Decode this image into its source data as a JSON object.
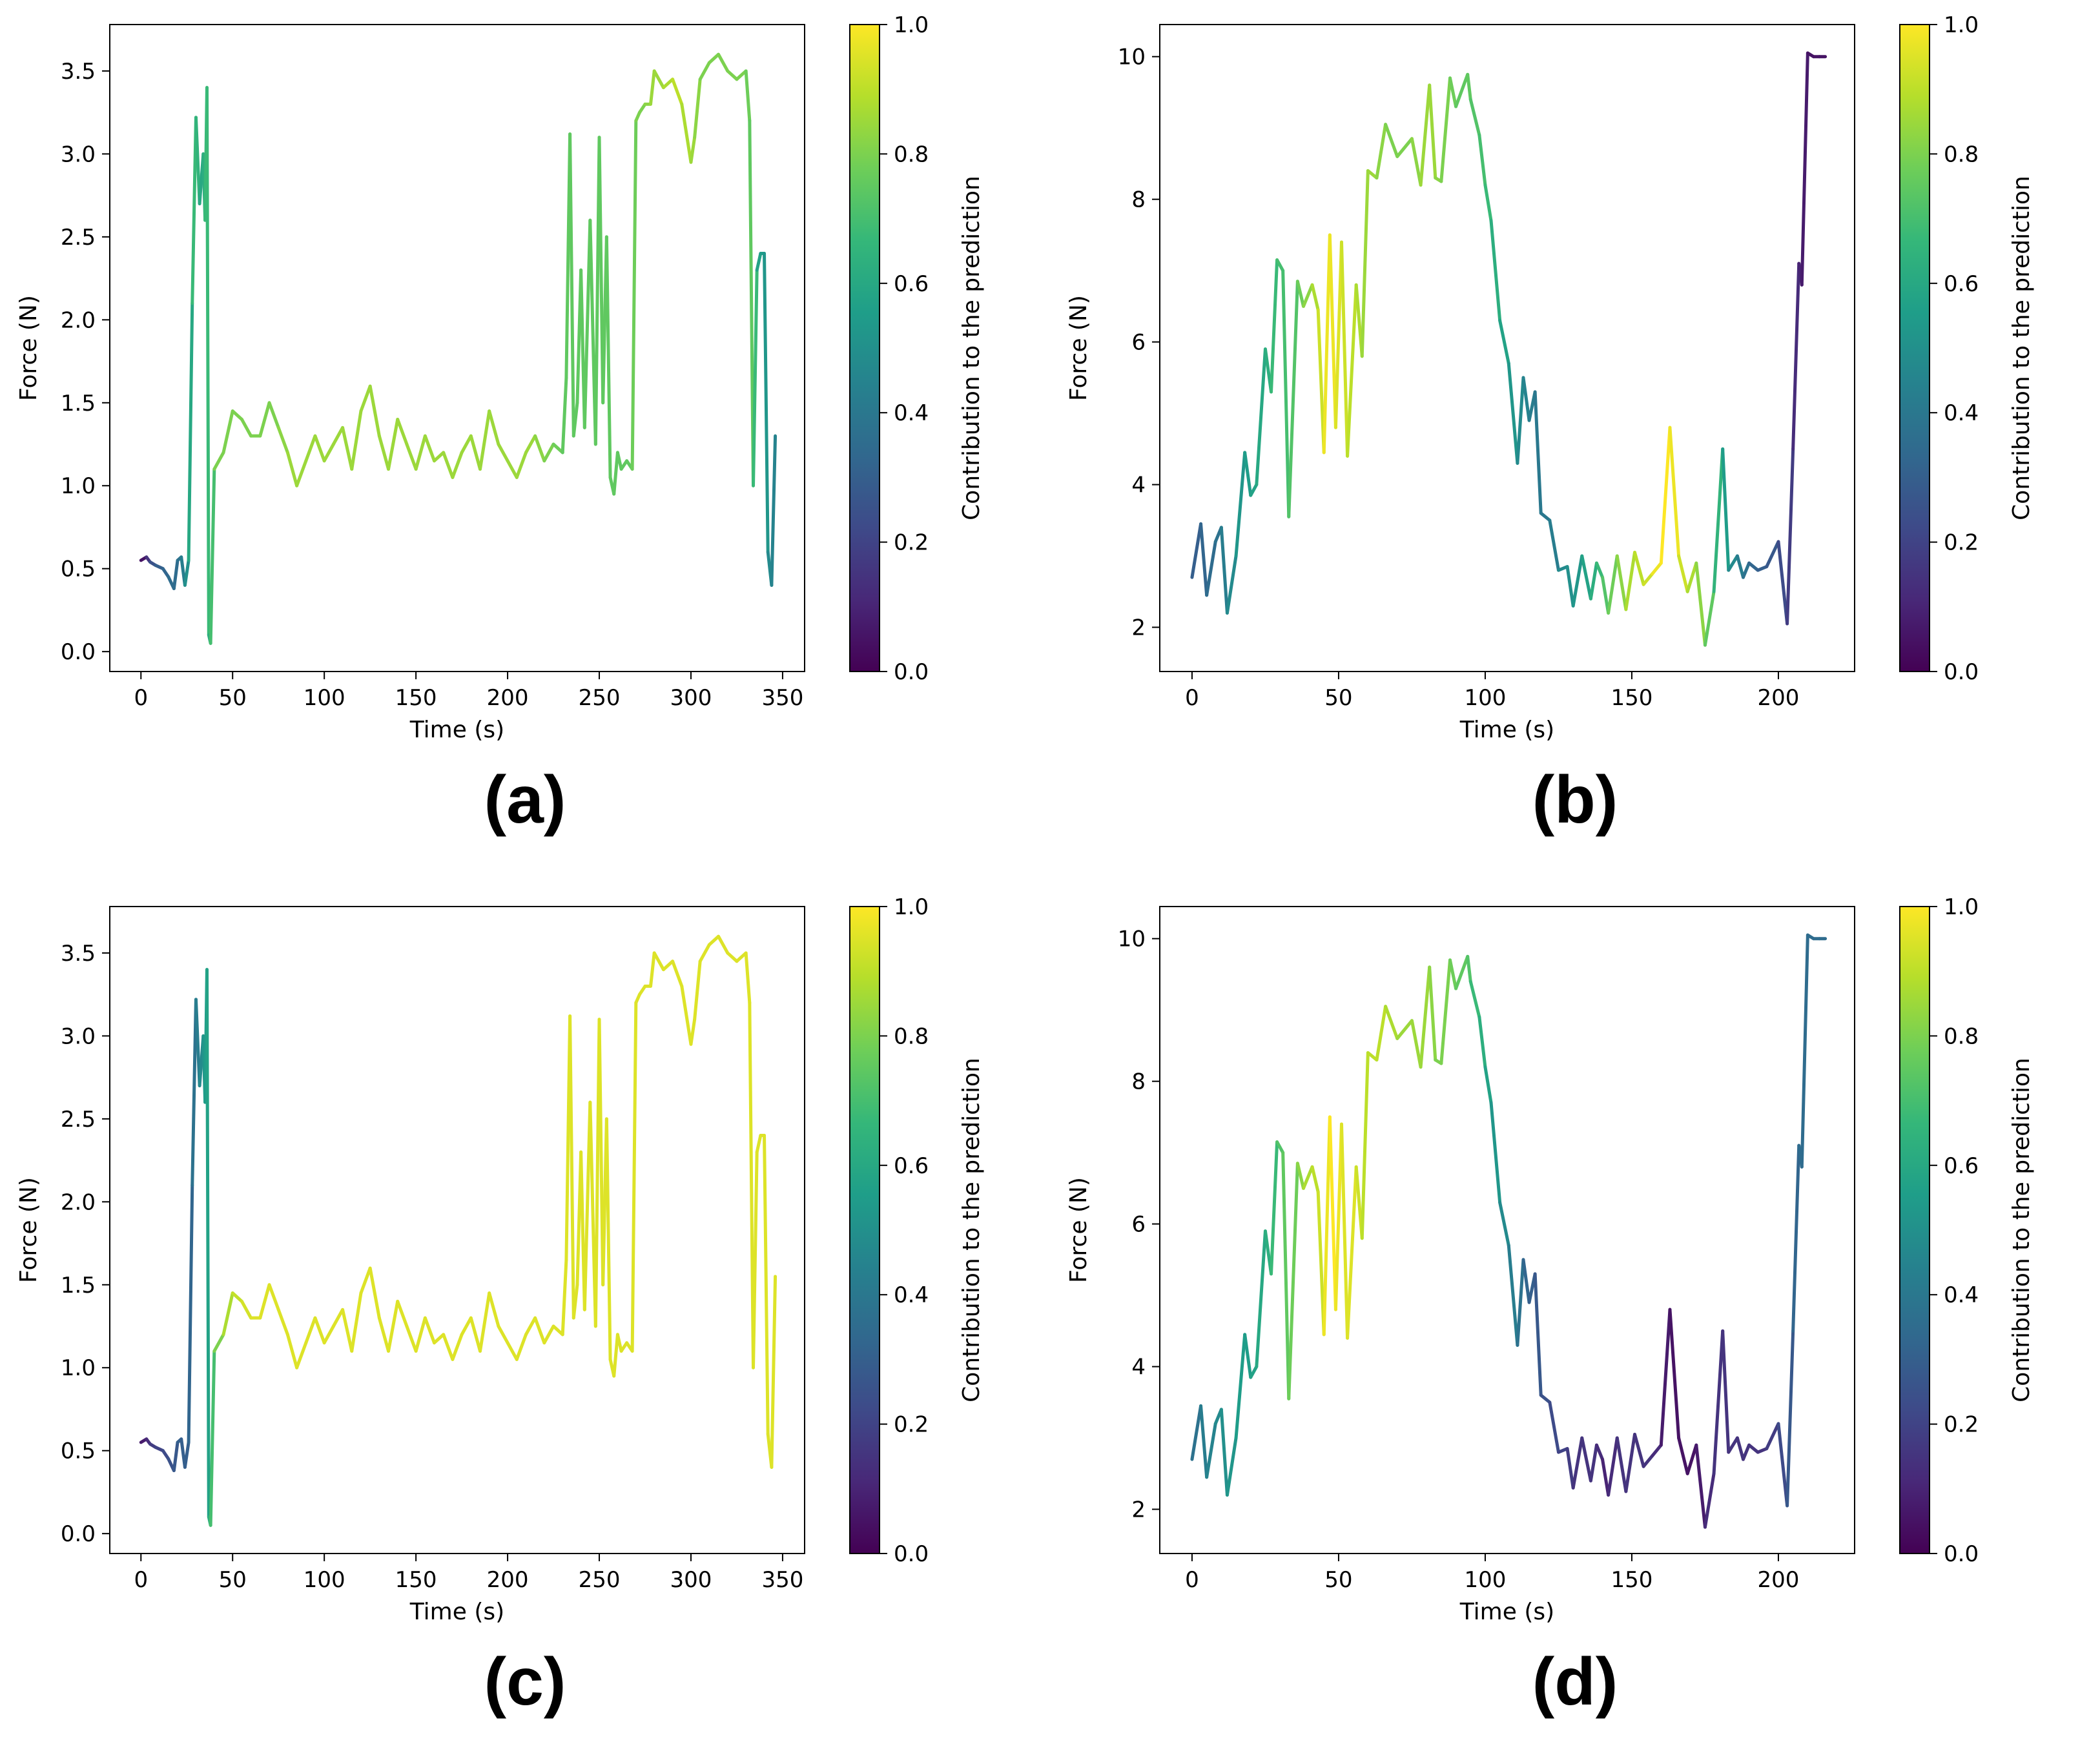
{
  "colorbar": {
    "label": "Contribution to the prediction",
    "ticks": [
      "0.0",
      "0.2",
      "0.4",
      "0.6",
      "0.8",
      "1.0"
    ],
    "range": [
      0,
      1
    ],
    "colormap": "viridis"
  },
  "chart_data": [
    {
      "id": "a",
      "panel_label": "(a)",
      "type": "line",
      "xlabel": "Time (s)",
      "ylabel": "Force (N)",
      "xlim": [
        -17,
        362
      ],
      "ylim": [
        -0.12,
        3.78
      ],
      "xticks": [
        "0",
        "50",
        "100",
        "150",
        "200",
        "250",
        "300",
        "350"
      ],
      "yticks": [
        "0.0",
        "0.5",
        "1.0",
        "1.5",
        "2.0",
        "2.5",
        "3.0",
        "3.5"
      ],
      "x": [
        0,
        3,
        5,
        8,
        12,
        15,
        18,
        20,
        22,
        24,
        26,
        28,
        30,
        32,
        34,
        35,
        36,
        37,
        38,
        40,
        45,
        50,
        55,
        60,
        65,
        70,
        75,
        80,
        85,
        90,
        95,
        100,
        105,
        110,
        115,
        120,
        125,
        130,
        135,
        140,
        145,
        150,
        155,
        160,
        165,
        170,
        175,
        180,
        185,
        190,
        195,
        200,
        205,
        210,
        215,
        220,
        225,
        230,
        232,
        234,
        236,
        238,
        240,
        242,
        245,
        248,
        250,
        252,
        254,
        256,
        258,
        260,
        262,
        265,
        268,
        270,
        272,
        275,
        278,
        280,
        285,
        290,
        295,
        300,
        302,
        305,
        310,
        315,
        320,
        325,
        330,
        332,
        334,
        336,
        338,
        340,
        342,
        344,
        346
      ],
      "y": [
        0.55,
        0.57,
        0.54,
        0.52,
        0.5,
        0.45,
        0.38,
        0.55,
        0.57,
        0.4,
        0.55,
        2.1,
        3.22,
        2.7,
        3.0,
        2.6,
        3.4,
        0.1,
        0.05,
        1.1,
        1.2,
        1.45,
        1.4,
        1.3,
        1.3,
        1.5,
        1.35,
        1.2,
        1.0,
        1.15,
        1.3,
        1.15,
        1.25,
        1.35,
        1.1,
        1.45,
        1.6,
        1.3,
        1.1,
        1.4,
        1.25,
        1.1,
        1.3,
        1.15,
        1.2,
        1.05,
        1.2,
        1.3,
        1.1,
        1.45,
        1.25,
        1.15,
        1.05,
        1.2,
        1.3,
        1.15,
        1.25,
        1.2,
        1.65,
        3.12,
        1.3,
        1.5,
        2.3,
        1.35,
        2.6,
        1.25,
        3.1,
        1.5,
        2.5,
        1.05,
        0.95,
        1.2,
        1.1,
        1.15,
        1.1,
        3.2,
        3.25,
        3.3,
        3.3,
        3.5,
        3.4,
        3.45,
        3.3,
        2.95,
        3.1,
        3.45,
        3.55,
        3.6,
        3.5,
        3.45,
        3.5,
        3.2,
        1.0,
        2.3,
        2.4,
        2.4,
        0.6,
        0.4,
        1.3
      ],
      "contribution": [
        0.0,
        0.1,
        0.2,
        0.3,
        0.3,
        0.35,
        0.35,
        0.35,
        0.4,
        0.45,
        0.55,
        0.65,
        0.7,
        0.6,
        0.6,
        0.65,
        0.7,
        0.65,
        0.6,
        0.8,
        0.8,
        0.8,
        0.8,
        0.8,
        0.8,
        0.8,
        0.8,
        0.85,
        0.85,
        0.85,
        0.85,
        0.85,
        0.85,
        0.85,
        0.85,
        0.85,
        0.85,
        0.85,
        0.85,
        0.85,
        0.85,
        0.85,
        0.85,
        0.85,
        0.85,
        0.85,
        0.85,
        0.85,
        0.85,
        0.85,
        0.85,
        0.85,
        0.85,
        0.85,
        0.85,
        0.8,
        0.8,
        0.75,
        0.75,
        0.75,
        0.75,
        0.75,
        0.75,
        0.75,
        0.75,
        0.75,
        0.75,
        0.75,
        0.75,
        0.75,
        0.75,
        0.75,
        0.75,
        0.75,
        0.75,
        0.8,
        0.8,
        0.8,
        0.85,
        0.85,
        0.85,
        0.9,
        0.9,
        0.85,
        0.85,
        0.8,
        0.8,
        0.8,
        0.8,
        0.8,
        0.8,
        0.75,
        0.75,
        0.6,
        0.55,
        0.55,
        0.5,
        0.45,
        0.45
      ]
    },
    {
      "id": "b",
      "panel_label": "(b)",
      "type": "line",
      "xlabel": "Time (s)",
      "ylabel": "Force (N)",
      "xlim": [
        -11,
        226
      ],
      "ylim": [
        1.38,
        10.45
      ],
      "xticks": [
        "0",
        "50",
        "100",
        "150",
        "200"
      ],
      "yticks": [
        "2",
        "4",
        "6",
        "8",
        "10"
      ],
      "x": [
        0,
        3,
        5,
        8,
        10,
        12,
        15,
        18,
        20,
        22,
        25,
        27,
        29,
        31,
        33,
        36,
        38,
        41,
        43,
        45,
        47,
        49,
        51,
        53,
        56,
        58,
        60,
        63,
        66,
        70,
        75,
        78,
        81,
        83,
        85,
        88,
        90,
        94,
        95,
        98,
        100,
        102,
        105,
        108,
        111,
        113,
        115,
        117,
        119,
        122,
        125,
        128,
        130,
        133,
        136,
        138,
        140,
        142,
        145,
        148,
        151,
        154,
        157,
        160,
        163,
        166,
        169,
        172,
        175,
        178,
        181,
        183,
        186,
        188,
        190,
        193,
        196,
        200,
        203,
        205,
        207,
        208,
        210,
        212,
        214,
        216
      ],
      "y": [
        2.7,
        3.45,
        2.45,
        3.2,
        3.4,
        2.2,
        3.0,
        4.45,
        3.85,
        4.0,
        5.9,
        5.3,
        7.15,
        7.0,
        3.55,
        6.85,
        6.5,
        6.8,
        6.45,
        4.45,
        7.5,
        4.8,
        7.4,
        4.4,
        6.8,
        5.8,
        8.4,
        8.3,
        9.05,
        8.6,
        8.85,
        8.2,
        9.6,
        8.3,
        8.25,
        9.7,
        9.3,
        9.75,
        9.4,
        8.9,
        8.2,
        7.7,
        6.3,
        5.7,
        4.3,
        5.5,
        4.9,
        5.3,
        3.6,
        3.5,
        2.8,
        2.85,
        2.3,
        3.0,
        2.4,
        2.9,
        2.7,
        2.2,
        3.0,
        2.25,
        3.05,
        2.6,
        2.75,
        2.9,
        4.8,
        3.0,
        2.5,
        2.9,
        1.75,
        2.5,
        4.5,
        2.8,
        3.0,
        2.7,
        2.9,
        2.8,
        2.85,
        3.2,
        2.05,
        4.5,
        7.1,
        6.8,
        10.05,
        10.0,
        10.0,
        10.0
      ],
      "contribution": [
        0.3,
        0.3,
        0.35,
        0.35,
        0.4,
        0.45,
        0.5,
        0.55,
        0.55,
        0.6,
        0.6,
        0.65,
        0.7,
        0.7,
        0.7,
        0.75,
        0.8,
        0.85,
        0.9,
        0.95,
        1.0,
        0.95,
        0.95,
        0.9,
        0.9,
        0.85,
        0.85,
        0.85,
        0.8,
        0.8,
        0.8,
        0.85,
        0.85,
        0.85,
        0.8,
        0.8,
        0.75,
        0.75,
        0.75,
        0.7,
        0.7,
        0.65,
        0.6,
        0.55,
        0.5,
        0.45,
        0.45,
        0.4,
        0.4,
        0.4,
        0.45,
        0.5,
        0.5,
        0.55,
        0.6,
        0.65,
        0.7,
        0.75,
        0.8,
        0.85,
        0.9,
        0.9,
        0.95,
        1.0,
        1.0,
        0.95,
        0.9,
        0.85,
        0.8,
        0.7,
        0.6,
        0.5,
        0.45,
        0.4,
        0.35,
        0.3,
        0.3,
        0.25,
        0.2,
        0.15,
        0.1,
        0.1,
        0.05,
        0.05,
        0.05,
        0.05
      ]
    },
    {
      "id": "c",
      "panel_label": "(c)",
      "type": "line",
      "xlabel": "Time (s)",
      "ylabel": "Force (N)",
      "xlim": [
        -17,
        362
      ],
      "ylim": [
        -0.12,
        3.78
      ],
      "xticks": [
        "0",
        "50",
        "100",
        "150",
        "200",
        "250",
        "300",
        "350"
      ],
      "yticks": [
        "0.0",
        "0.5",
        "1.0",
        "1.5",
        "2.0",
        "2.5",
        "3.0",
        "3.5"
      ],
      "x": [
        0,
        3,
        5,
        8,
        12,
        15,
        18,
        20,
        22,
        24,
        26,
        28,
        30,
        32,
        34,
        35,
        36,
        37,
        38,
        40,
        45,
        50,
        55,
        60,
        65,
        70,
        75,
        80,
        85,
        90,
        95,
        100,
        105,
        110,
        115,
        120,
        125,
        130,
        135,
        140,
        145,
        150,
        155,
        160,
        165,
        170,
        175,
        180,
        185,
        190,
        195,
        200,
        205,
        210,
        215,
        220,
        225,
        230,
        232,
        234,
        236,
        238,
        240,
        242,
        245,
        248,
        250,
        252,
        254,
        256,
        258,
        260,
        262,
        265,
        268,
        270,
        272,
        275,
        278,
        280,
        285,
        290,
        295,
        300,
        302,
        305,
        310,
        315,
        320,
        325,
        330,
        332,
        334,
        336,
        338,
        340,
        342,
        344,
        346
      ],
      "y": [
        0.55,
        0.57,
        0.54,
        0.52,
        0.5,
        0.45,
        0.38,
        0.55,
        0.57,
        0.4,
        0.55,
        2.1,
        3.22,
        2.7,
        3.0,
        2.6,
        3.4,
        0.1,
        0.05,
        1.1,
        1.2,
        1.45,
        1.4,
        1.3,
        1.3,
        1.5,
        1.35,
        1.2,
        1.0,
        1.15,
        1.3,
        1.15,
        1.25,
        1.35,
        1.1,
        1.45,
        1.6,
        1.3,
        1.1,
        1.4,
        1.25,
        1.1,
        1.3,
        1.15,
        1.2,
        1.05,
        1.2,
        1.3,
        1.1,
        1.45,
        1.25,
        1.15,
        1.05,
        1.2,
        1.3,
        1.15,
        1.25,
        1.2,
        1.65,
        3.12,
        1.3,
        1.5,
        2.3,
        1.35,
        2.6,
        1.25,
        3.1,
        1.5,
        2.5,
        1.05,
        0.95,
        1.2,
        1.1,
        1.15,
        1.1,
        3.2,
        3.25,
        3.3,
        3.3,
        3.5,
        3.4,
        3.45,
        3.3,
        2.95,
        3.1,
        3.45,
        3.55,
        3.6,
        3.5,
        3.45,
        3.5,
        3.2,
        1.0,
        2.3,
        2.4,
        2.4,
        0.6,
        0.4,
        1.55
      ],
      "contribution": [
        0.05,
        0.1,
        0.15,
        0.2,
        0.2,
        0.25,
        0.25,
        0.3,
        0.3,
        0.3,
        0.3,
        0.35,
        0.4,
        0.45,
        0.5,
        0.55,
        0.55,
        0.6,
        0.65,
        0.75,
        0.85,
        0.9,
        0.92,
        0.95,
        0.95,
        0.95,
        0.95,
        0.95,
        0.95,
        0.95,
        0.95,
        0.95,
        0.95,
        0.95,
        0.95,
        0.95,
        0.95,
        0.95,
        0.95,
        0.95,
        0.95,
        0.95,
        0.95,
        0.95,
        0.95,
        0.95,
        0.95,
        0.95,
        0.95,
        0.95,
        0.95,
        0.95,
        0.95,
        0.95,
        0.95,
        0.95,
        0.95,
        0.95,
        0.95,
        0.95,
        0.95,
        0.95,
        0.95,
        0.95,
        0.95,
        0.95,
        0.95,
        0.95,
        0.95,
        0.95,
        0.95,
        0.95,
        0.95,
        0.95,
        0.95,
        0.95,
        0.95,
        0.95,
        0.95,
        0.95,
        0.95,
        0.95,
        0.95,
        0.95,
        0.95,
        0.95,
        0.95,
        0.95,
        0.95,
        0.95,
        0.95,
        0.95,
        0.95,
        0.95,
        0.95,
        0.95,
        0.95,
        0.95,
        0.95
      ]
    },
    {
      "id": "d",
      "panel_label": "(d)",
      "type": "line",
      "xlabel": "Time (s)",
      "ylabel": "Force (N)",
      "xlim": [
        -11,
        226
      ],
      "ylim": [
        1.38,
        10.45
      ],
      "xticks": [
        "0",
        "50",
        "100",
        "150",
        "200"
      ],
      "yticks": [
        "2",
        "4",
        "6",
        "8",
        "10"
      ],
      "x": [
        0,
        3,
        5,
        8,
        10,
        12,
        15,
        18,
        20,
        22,
        25,
        27,
        29,
        31,
        33,
        36,
        38,
        41,
        43,
        45,
        47,
        49,
        51,
        53,
        56,
        58,
        60,
        63,
        66,
        70,
        75,
        78,
        81,
        83,
        85,
        88,
        90,
        94,
        95,
        98,
        100,
        102,
        105,
        108,
        111,
        113,
        115,
        117,
        119,
        122,
        125,
        128,
        130,
        133,
        136,
        138,
        140,
        142,
        145,
        148,
        151,
        154,
        157,
        160,
        163,
        166,
        169,
        172,
        175,
        178,
        181,
        183,
        186,
        188,
        190,
        193,
        196,
        200,
        203,
        205,
        207,
        208,
        210,
        212,
        214,
        216
      ],
      "y": [
        2.7,
        3.45,
        2.45,
        3.2,
        3.4,
        2.2,
        3.0,
        4.45,
        3.85,
        4.0,
        5.9,
        5.3,
        7.15,
        7.0,
        3.55,
        6.85,
        6.5,
        6.8,
        6.45,
        4.45,
        7.5,
        4.8,
        7.4,
        4.4,
        6.8,
        5.8,
        8.4,
        8.3,
        9.05,
        8.6,
        8.85,
        8.2,
        9.6,
        8.3,
        8.25,
        9.7,
        9.3,
        9.75,
        9.4,
        8.9,
        8.2,
        7.7,
        6.3,
        5.7,
        4.3,
        5.5,
        4.9,
        5.3,
        3.6,
        3.5,
        2.8,
        2.85,
        2.3,
        3.0,
        2.4,
        2.9,
        2.7,
        2.2,
        3.0,
        2.25,
        3.05,
        2.6,
        2.75,
        2.9,
        4.8,
        3.0,
        2.5,
        2.9,
        1.75,
        2.5,
        4.5,
        2.8,
        3.0,
        2.7,
        2.9,
        2.8,
        2.85,
        3.2,
        2.05,
        4.5,
        7.1,
        6.8,
        10.05,
        10.0,
        10.0,
        10.0
      ],
      "contribution": [
        0.35,
        0.4,
        0.45,
        0.45,
        0.5,
        0.5,
        0.55,
        0.55,
        0.55,
        0.6,
        0.6,
        0.65,
        0.7,
        0.75,
        0.75,
        0.8,
        0.85,
        0.9,
        0.9,
        0.95,
        1.0,
        1.0,
        0.95,
        0.95,
        0.95,
        0.9,
        0.9,
        0.9,
        0.9,
        0.85,
        0.85,
        0.85,
        0.85,
        0.8,
        0.8,
        0.8,
        0.75,
        0.75,
        0.7,
        0.65,
        0.6,
        0.55,
        0.5,
        0.45,
        0.4,
        0.35,
        0.3,
        0.3,
        0.25,
        0.25,
        0.2,
        0.2,
        0.15,
        0.15,
        0.15,
        0.15,
        0.1,
        0.1,
        0.15,
        0.15,
        0.15,
        0.15,
        0.15,
        0.1,
        0.05,
        0.05,
        0.05,
        0.05,
        0.1,
        0.15,
        0.15,
        0.15,
        0.15,
        0.15,
        0.15,
        0.15,
        0.15,
        0.2,
        0.25,
        0.3,
        0.35,
        0.35,
        0.35,
        0.35,
        0.35,
        0.35
      ]
    }
  ]
}
